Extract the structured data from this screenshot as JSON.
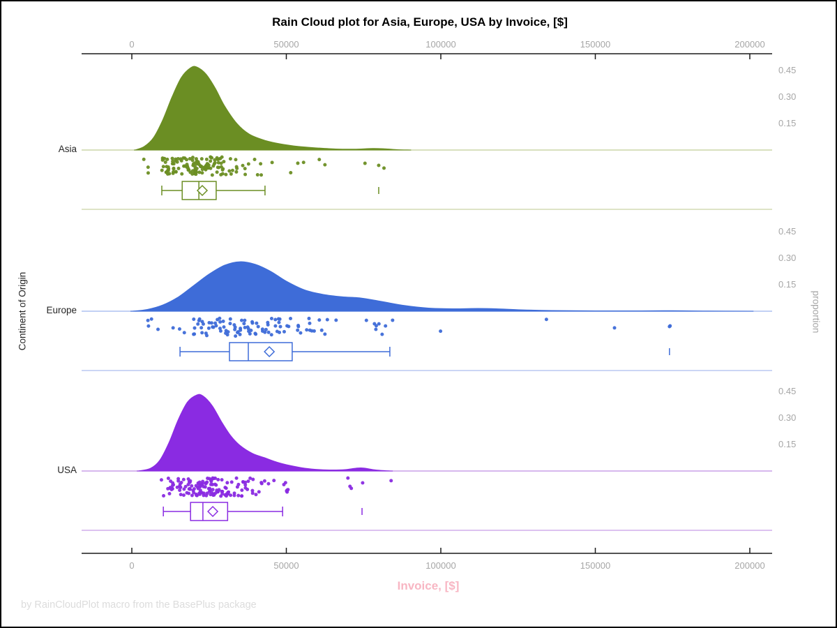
{
  "footer": {
    "caption": "by RainCloudPlot macro from the BasePlus package"
  },
  "chart_data": {
    "type": "raincloud",
    "title": "Rain Cloud plot for Asia, Europe, USA by Invoice, [$]",
    "xlabel": "Invoice, [$]",
    "ylabel": "Continent of Origin",
    "y2label": "proportion",
    "x_ticks": [
      "0",
      "50000",
      "100000",
      "150000",
      "200000"
    ],
    "x_tick_values": [
      0,
      50000,
      100000,
      150000,
      200000
    ],
    "xlim": [
      0,
      200000
    ],
    "proportion_ticks": [
      "0.45",
      "0.30",
      "0.15"
    ],
    "grid": false,
    "legend_position": "none",
    "series": [
      {
        "name": "Asia",
        "color": "#6b8e23",
        "light_color": "#cbd6a8",
        "density": {
          "x": [
            1000,
            4000,
            7000,
            10000,
            13000,
            16000,
            19000,
            21000,
            24000,
            27000,
            30000,
            34000,
            38000,
            43000,
            48000,
            54000,
            60000,
            66000,
            72000,
            78000,
            82000,
            86000,
            90000
          ],
          "proportion": [
            0.0,
            0.02,
            0.07,
            0.17,
            0.3,
            0.41,
            0.465,
            0.47,
            0.43,
            0.35,
            0.25,
            0.15,
            0.09,
            0.055,
            0.035,
            0.02,
            0.012,
            0.006,
            0.005,
            0.009,
            0.007,
            0.002,
            0.0
          ]
        },
        "box": {
          "min": 9700,
          "q1": 16300,
          "median": 21700,
          "mean": 22800,
          "q3": 27300,
          "max": 43100,
          "outliers": [
            79900
          ]
        },
        "rain": {
          "count": 150,
          "seed": 11,
          "extra_points": [
            79900
          ]
        }
      },
      {
        "name": "Europe",
        "color": "#3e6cd8",
        "light_color": "#aec0f0",
        "density": {
          "x": [
            0,
            5000,
            10000,
            15000,
            20000,
            25000,
            30000,
            35000,
            40000,
            45000,
            50000,
            56000,
            62000,
            68000,
            74000,
            80000,
            88000,
            96000,
            104000,
            112000,
            118000,
            126000,
            136000,
            150000,
            165000,
            175000,
            185000,
            200000
          ],
          "proportion": [
            0.0,
            0.01,
            0.035,
            0.08,
            0.145,
            0.21,
            0.26,
            0.28,
            0.265,
            0.225,
            0.17,
            0.12,
            0.095,
            0.082,
            0.075,
            0.058,
            0.033,
            0.018,
            0.014,
            0.016,
            0.014,
            0.008,
            0.004,
            0.002,
            0.002,
            0.003,
            0.001,
            0.0
          ]
        },
        "box": {
          "min": 15600,
          "q1": 31600,
          "median": 37700,
          "mean": 44500,
          "q3": 51900,
          "max": 83500,
          "outliers": [
            174000
          ]
        },
        "rain": {
          "count": 112,
          "seed": 22,
          "extra_points": [
            174000
          ]
        }
      },
      {
        "name": "USA",
        "color": "#8a2be2",
        "light_color": "#c9a0e8",
        "density": {
          "x": [
            2000,
            6000,
            9000,
            12000,
            15000,
            18000,
            21000,
            23000,
            26000,
            29000,
            32000,
            35000,
            39000,
            43000,
            47000,
            51000,
            56000,
            61000,
            65000,
            69000,
            72500,
            75000,
            79000,
            84000
          ],
          "proportion": [
            0.0,
            0.015,
            0.06,
            0.16,
            0.29,
            0.39,
            0.43,
            0.425,
            0.37,
            0.28,
            0.2,
            0.145,
            0.1,
            0.075,
            0.05,
            0.032,
            0.016,
            0.008,
            0.006,
            0.008,
            0.016,
            0.017,
            0.006,
            0.0
          ]
        },
        "box": {
          "min": 10200,
          "q1": 19000,
          "median": 23000,
          "mean": 26200,
          "q3": 31000,
          "max": 48800,
          "outliers": [
            74500
          ]
        },
        "rain": {
          "count": 155,
          "seed": 33,
          "extra_points": [
            70600,
            74700
          ]
        }
      }
    ]
  }
}
